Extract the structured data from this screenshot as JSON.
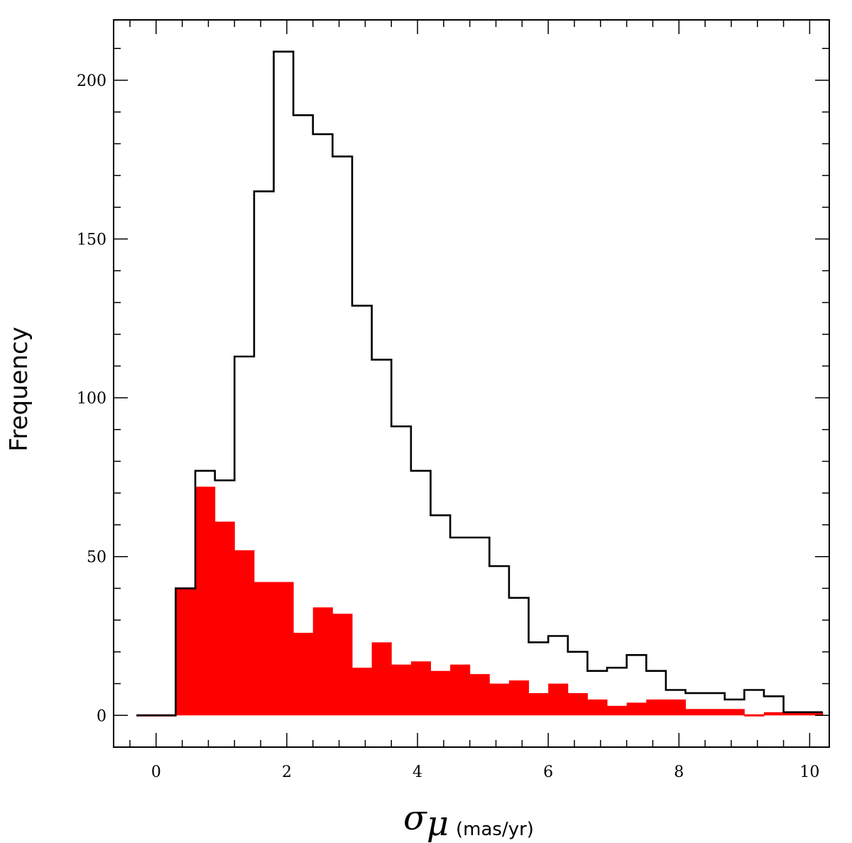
{
  "chart_data": {
    "type": "bar",
    "x_bin_edges": [
      -0.3,
      0.0,
      0.3,
      0.6,
      0.9,
      1.2,
      1.5,
      1.8,
      2.1,
      2.4,
      2.7,
      3.0,
      3.3,
      3.6,
      3.9,
      4.2,
      4.5,
      4.8,
      5.1,
      5.4,
      5.7,
      6.0,
      6.3,
      6.6,
      6.9,
      7.2,
      7.5,
      7.8,
      8.1,
      8.4,
      8.7,
      9.0,
      9.3,
      9.6,
      9.9,
      10.2
    ],
    "series": [
      {
        "values": [
          0,
          0,
          40,
          77,
          74,
          113,
          165,
          209,
          189,
          183,
          176,
          129,
          112,
          91,
          77,
          63,
          56,
          56,
          47,
          37,
          23,
          25,
          20,
          14,
          15,
          19,
          14,
          8,
          7,
          7,
          5,
          8,
          6,
          1,
          1
        ],
        "style": "step-outline",
        "color": "#000000"
      },
      {
        "values": [
          0,
          0,
          40,
          72,
          61,
          52,
          42,
          42,
          26,
          34,
          32,
          15,
          23,
          16,
          17,
          14,
          16,
          13,
          10,
          11,
          7,
          10,
          7,
          5,
          3,
          4,
          5,
          5,
          2,
          2,
          2,
          0,
          1,
          1,
          1
        ],
        "style": "filled",
        "color": "#ff0000"
      }
    ],
    "xlim": [
      -0.65,
      10.3
    ],
    "ylim": [
      -10,
      219
    ],
    "xticks": [
      "0",
      "2",
      "4",
      "6",
      "8",
      "10"
    ],
    "yticks": [
      "0",
      "50",
      "100",
      "150",
      "200"
    ],
    "xlabel_symbol": "σ",
    "xlabel_subscript": "μ",
    "xlabel_unit": "(mas/yr)",
    "ylabel": "Frequency",
    "grid": false,
    "legend": "none"
  }
}
